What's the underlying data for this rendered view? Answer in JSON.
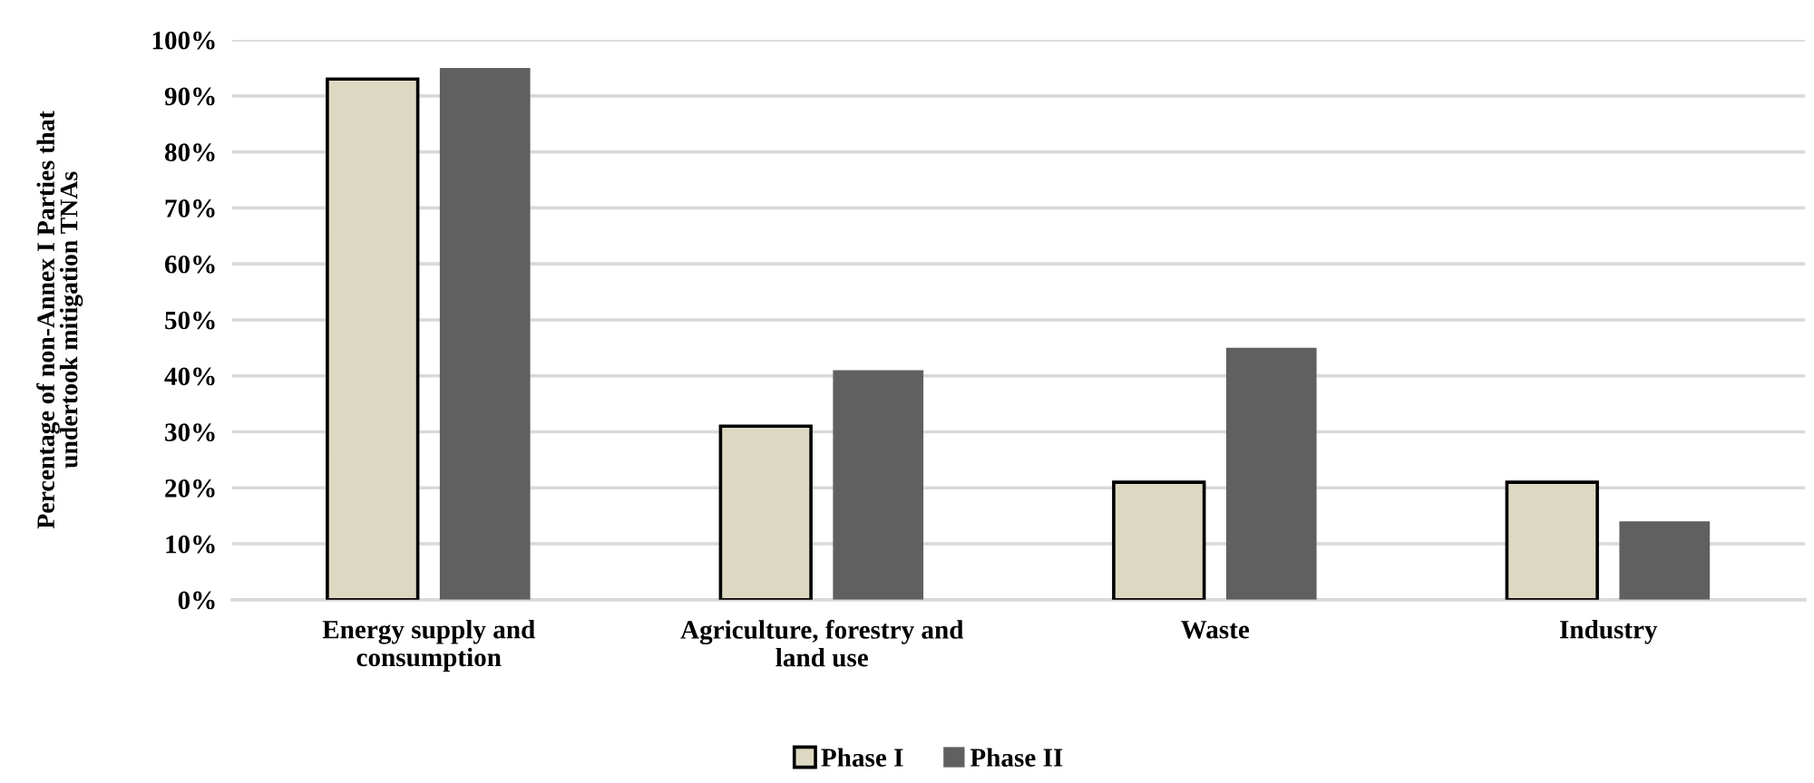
{
  "chart_data": {
    "type": "bar",
    "ylabel": "Percentage of non-Annex I Parties that\nundertook mitigation TNAs",
    "categories": [
      "Energy supply and\nconsumption",
      "Agriculture, forestry and\nland use",
      "Waste",
      "Industry"
    ],
    "series": [
      {
        "name": "Phase I",
        "color": "#ddd8c2",
        "values": [
          93,
          31,
          21,
          21
        ]
      },
      {
        "name": "Phase II",
        "color": "#606060",
        "values": [
          95,
          41,
          45,
          14
        ]
      }
    ],
    "ylim": [
      0,
      100
    ],
    "yticks": [
      {
        "value": 0,
        "label": "0%"
      },
      {
        "value": 10,
        "label": "10%"
      },
      {
        "value": 20,
        "label": "20%"
      },
      {
        "value": 30,
        "label": "30%"
      },
      {
        "value": 40,
        "label": "40%"
      },
      {
        "value": 50,
        "label": "50%"
      },
      {
        "value": 60,
        "label": "60%"
      },
      {
        "value": 70,
        "label": "70%"
      },
      {
        "value": 80,
        "label": "80%"
      },
      {
        "value": 90,
        "label": "90%"
      },
      {
        "value": 100,
        "label": "100%"
      }
    ],
    "grid": "y",
    "legend": "bottom"
  }
}
